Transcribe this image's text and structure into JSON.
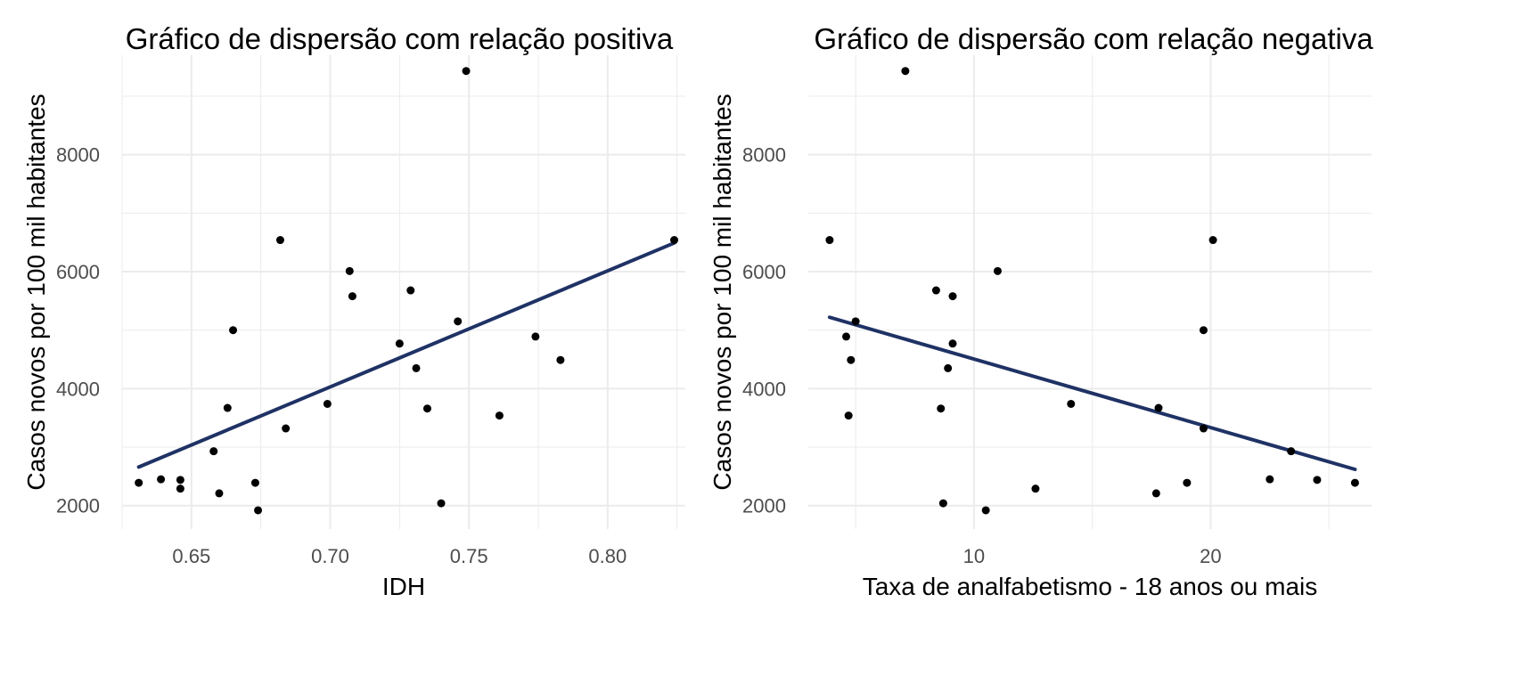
{
  "chart_data": [
    {
      "type": "scatter",
      "title": "Gráfico de dispersão com relação positiva",
      "xlabel": "IDH",
      "ylabel": "Casos novos por 100 mil habitantes",
      "xlim": [
        0.625,
        0.828
      ],
      "ylim": [
        1600,
        9700
      ],
      "x_ticks": [
        0.65,
        0.7,
        0.75,
        0.8
      ],
      "x_tick_labels": [
        "0.65",
        "0.70",
        "0.75",
        "0.80"
      ],
      "y_ticks": [
        2000,
        4000,
        6000,
        8000
      ],
      "y_tick_labels": [
        "2000",
        "4000",
        "6000",
        "8000"
      ],
      "grid": true,
      "point_color": "#000000",
      "trend_color": "#1f3265",
      "points": [
        {
          "x": 0.631,
          "y": 2390
        },
        {
          "x": 0.639,
          "y": 2450
        },
        {
          "x": 0.646,
          "y": 2440
        },
        {
          "x": 0.646,
          "y": 2290
        },
        {
          "x": 0.658,
          "y": 2930
        },
        {
          "x": 0.66,
          "y": 2210
        },
        {
          "x": 0.663,
          "y": 3670
        },
        {
          "x": 0.665,
          "y": 5000
        },
        {
          "x": 0.673,
          "y": 2390
        },
        {
          "x": 0.674,
          "y": 1920
        },
        {
          "x": 0.682,
          "y": 6540
        },
        {
          "x": 0.684,
          "y": 3320
        },
        {
          "x": 0.699,
          "y": 3740
        },
        {
          "x": 0.707,
          "y": 6010
        },
        {
          "x": 0.708,
          "y": 5580
        },
        {
          "x": 0.725,
          "y": 4770
        },
        {
          "x": 0.729,
          "y": 5680
        },
        {
          "x": 0.731,
          "y": 4350
        },
        {
          "x": 0.735,
          "y": 3660
        },
        {
          "x": 0.74,
          "y": 2040
        },
        {
          "x": 0.746,
          "y": 5150
        },
        {
          "x": 0.749,
          "y": 9430
        },
        {
          "x": 0.761,
          "y": 3540
        },
        {
          "x": 0.774,
          "y": 4890
        },
        {
          "x": 0.783,
          "y": 4490
        },
        {
          "x": 0.824,
          "y": 6540
        }
      ],
      "trend": {
        "x": [
          0.631,
          0.824
        ],
        "y": [
          2660,
          6490
        ]
      }
    },
    {
      "type": "scatter",
      "title": "Gráfico de dispersão com relação negativa",
      "xlabel": "Taxa de analfabetismo - 18 anos ou mais",
      "ylabel": "Casos novos por 100 mil habitantes",
      "xlim": [
        3.0,
        26.8
      ],
      "ylim": [
        1600,
        9700
      ],
      "x_ticks": [
        10,
        20
      ],
      "x_tick_labels": [
        "10",
        "20"
      ],
      "y_ticks": [
        2000,
        4000,
        6000,
        8000
      ],
      "y_tick_labels": [
        "2000",
        "4000",
        "6000",
        "8000"
      ],
      "grid": true,
      "point_color": "#000000",
      "trend_color": "#1f3265",
      "points": [
        {
          "x": 3.9,
          "y": 6540
        },
        {
          "x": 4.6,
          "y": 4890
        },
        {
          "x": 4.7,
          "y": 3540
        },
        {
          "x": 4.8,
          "y": 4490
        },
        {
          "x": 5.0,
          "y": 5150
        },
        {
          "x": 7.1,
          "y": 9430
        },
        {
          "x": 8.4,
          "y": 5680
        },
        {
          "x": 8.6,
          "y": 3660
        },
        {
          "x": 8.7,
          "y": 2040
        },
        {
          "x": 8.9,
          "y": 4350
        },
        {
          "x": 9.1,
          "y": 4770
        },
        {
          "x": 9.1,
          "y": 5580
        },
        {
          "x": 10.5,
          "y": 1920
        },
        {
          "x": 11.0,
          "y": 6010
        },
        {
          "x": 12.6,
          "y": 2290
        },
        {
          "x": 14.1,
          "y": 3740
        },
        {
          "x": 17.7,
          "y": 2210
        },
        {
          "x": 17.8,
          "y": 3670
        },
        {
          "x": 19.0,
          "y": 2390
        },
        {
          "x": 19.7,
          "y": 5000
        },
        {
          "x": 19.7,
          "y": 3320
        },
        {
          "x": 20.1,
          "y": 6540
        },
        {
          "x": 22.5,
          "y": 2450
        },
        {
          "x": 23.4,
          "y": 2930
        },
        {
          "x": 24.5,
          "y": 2440
        },
        {
          "x": 26.1,
          "y": 2390
        }
      ],
      "trend": {
        "x": [
          3.9,
          26.1
        ],
        "y": [
          5220,
          2620
        ]
      }
    }
  ]
}
